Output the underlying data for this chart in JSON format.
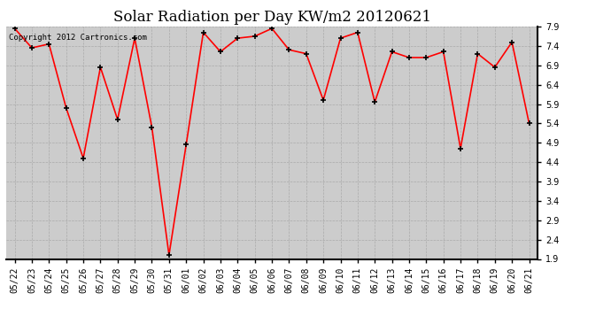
{
  "title": "Solar Radiation per Day KW/m2 20120621",
  "copyright_text": "Copyright 2012 Cartronics.com",
  "dates": [
    "05/22",
    "05/23",
    "05/24",
    "05/25",
    "05/26",
    "05/27",
    "05/28",
    "05/29",
    "05/30",
    "05/31",
    "06/01",
    "06/02",
    "06/03",
    "06/04",
    "06/05",
    "06/06",
    "06/07",
    "06/08",
    "06/09",
    "06/10",
    "06/11",
    "06/12",
    "06/13",
    "06/14",
    "06/15",
    "06/16",
    "06/17",
    "06/18",
    "06/19",
    "06/20",
    "06/21"
  ],
  "values": [
    7.85,
    7.35,
    7.45,
    5.8,
    4.5,
    6.85,
    5.5,
    7.6,
    5.3,
    2.0,
    4.85,
    7.75,
    7.25,
    7.6,
    7.65,
    7.85,
    7.3,
    7.2,
    6.0,
    7.6,
    7.75,
    5.95,
    7.25,
    7.1,
    7.1,
    7.25,
    4.75,
    7.2,
    6.85,
    7.5,
    5.4
  ],
  "line_color": "#ff0000",
  "marker_color": "#000000",
  "bg_color": "#ffffff",
  "plot_bg_color": "#cccccc",
  "grid_color": "#aaaaaa",
  "ylim_min": 1.9,
  "ylim_max": 7.9,
  "yticks": [
    1.9,
    2.4,
    2.9,
    3.4,
    3.9,
    4.4,
    4.9,
    5.4,
    5.9,
    6.4,
    6.9,
    7.4,
    7.9
  ],
  "title_fontsize": 12,
  "tick_fontsize": 7,
  "copyright_fontsize": 6.5,
  "line_width": 1.2,
  "marker_size": 5,
  "marker_edge_width": 1.2
}
